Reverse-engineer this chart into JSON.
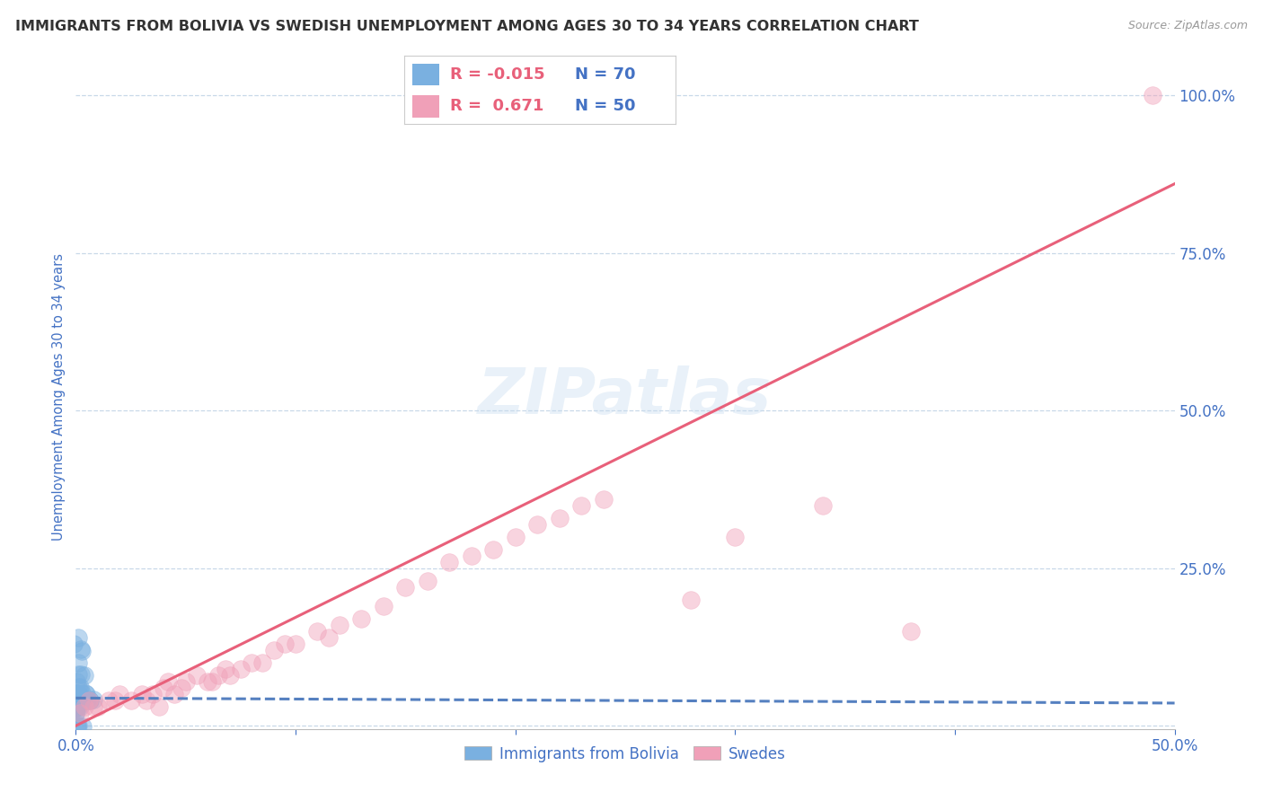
{
  "title": "IMMIGRANTS FROM BOLIVIA VS SWEDISH UNEMPLOYMENT AMONG AGES 30 TO 34 YEARS CORRELATION CHART",
  "source": "Source: ZipAtlas.com",
  "ylabel": "Unemployment Among Ages 30 to 34 years",
  "xlim": [
    0.0,
    0.5
  ],
  "ylim": [
    -0.005,
    1.05
  ],
  "ytick_positions": [
    0.0,
    0.25,
    0.5,
    0.75,
    1.0
  ],
  "ytick_labels": [
    "",
    "25.0%",
    "50.0%",
    "75.0%",
    "100.0%"
  ],
  "grid_color": "#c8d8e8",
  "background_color": "#ffffff",
  "title_color": "#333333",
  "title_fontsize": 11.5,
  "tick_label_color": "#4472c4",
  "watermark_text": "ZIPatlas",
  "legend_r_blue": "-0.015",
  "legend_n_blue": "70",
  "legend_r_pink": "0.671",
  "legend_n_pink": "50",
  "blue_color": "#7ab0e0",
  "pink_color": "#f0a0b8",
  "blue_line_color": "#5580c0",
  "pink_line_color": "#e8607a",
  "blue_scatter_x": [
    0.0,
    0.0,
    0.0,
    0.0,
    0.0,
    0.0,
    0.0,
    0.0,
    0.0,
    0.0,
    0.0,
    0.0,
    0.0,
    0.0,
    0.0,
    0.0,
    0.0,
    0.0,
    0.0,
    0.0,
    0.0,
    0.0,
    0.0,
    0.0,
    0.0,
    0.001,
    0.001,
    0.001,
    0.001,
    0.001,
    0.001,
    0.001,
    0.001,
    0.002,
    0.002,
    0.002,
    0.002,
    0.002,
    0.003,
    0.003,
    0.003,
    0.003,
    0.004,
    0.004,
    0.004,
    0.005,
    0.005,
    0.006,
    0.007,
    0.008,
    0.0,
    0.0,
    0.0,
    0.0,
    0.0,
    0.001,
    0.001,
    0.002,
    0.002,
    0.003,
    0.0,
    0.0,
    0.001,
    0.002,
    0.003,
    0.001,
    0.0,
    0.0,
    0.0,
    0.0
  ],
  "blue_scatter_y": [
    0.03,
    0.03,
    0.04,
    0.04,
    0.05,
    0.05,
    0.05,
    0.04,
    0.03,
    0.04,
    0.04,
    0.05,
    0.03,
    0.04,
    0.04,
    0.03,
    0.05,
    0.04,
    0.03,
    0.04,
    0.04,
    0.05,
    0.03,
    0.04,
    0.05,
    0.04,
    0.05,
    0.06,
    0.04,
    0.03,
    0.08,
    0.04,
    0.05,
    0.04,
    0.05,
    0.06,
    0.04,
    0.12,
    0.04,
    0.05,
    0.04,
    0.08,
    0.04,
    0.04,
    0.08,
    0.05,
    0.05,
    0.04,
    0.04,
    0.04,
    0.04,
    0.03,
    0.04,
    0.04,
    0.04,
    0.1,
    0.14,
    0.12,
    0.04,
    0.04,
    0.02,
    0.02,
    0.0,
    0.0,
    0.0,
    0.0,
    0.13,
    0.07,
    0.05,
    0.04
  ],
  "pink_scatter_x": [
    0.002,
    0.004,
    0.006,
    0.008,
    0.01,
    0.015,
    0.018,
    0.02,
    0.025,
    0.03,
    0.032,
    0.035,
    0.038,
    0.04,
    0.042,
    0.045,
    0.048,
    0.05,
    0.055,
    0.06,
    0.062,
    0.065,
    0.068,
    0.07,
    0.075,
    0.08,
    0.085,
    0.09,
    0.095,
    0.1,
    0.11,
    0.115,
    0.12,
    0.13,
    0.14,
    0.15,
    0.16,
    0.17,
    0.18,
    0.19,
    0.2,
    0.21,
    0.22,
    0.23,
    0.24,
    0.28,
    0.3,
    0.34,
    0.38,
    0.49
  ],
  "pink_scatter_y": [
    0.02,
    0.03,
    0.04,
    0.03,
    0.03,
    0.04,
    0.04,
    0.05,
    0.04,
    0.05,
    0.04,
    0.05,
    0.03,
    0.06,
    0.07,
    0.05,
    0.06,
    0.07,
    0.08,
    0.07,
    0.07,
    0.08,
    0.09,
    0.08,
    0.09,
    0.1,
    0.1,
    0.12,
    0.13,
    0.13,
    0.15,
    0.14,
    0.16,
    0.17,
    0.19,
    0.22,
    0.23,
    0.26,
    0.27,
    0.28,
    0.3,
    0.32,
    0.33,
    0.35,
    0.36,
    0.2,
    0.3,
    0.35,
    0.15,
    1.0
  ],
  "blue_trendline_x": [
    0.0,
    0.5
  ],
  "blue_trendline_y": [
    0.044,
    0.036
  ],
  "pink_trendline_x": [
    0.0,
    0.5
  ],
  "pink_trendline_y": [
    0.0,
    0.86
  ]
}
